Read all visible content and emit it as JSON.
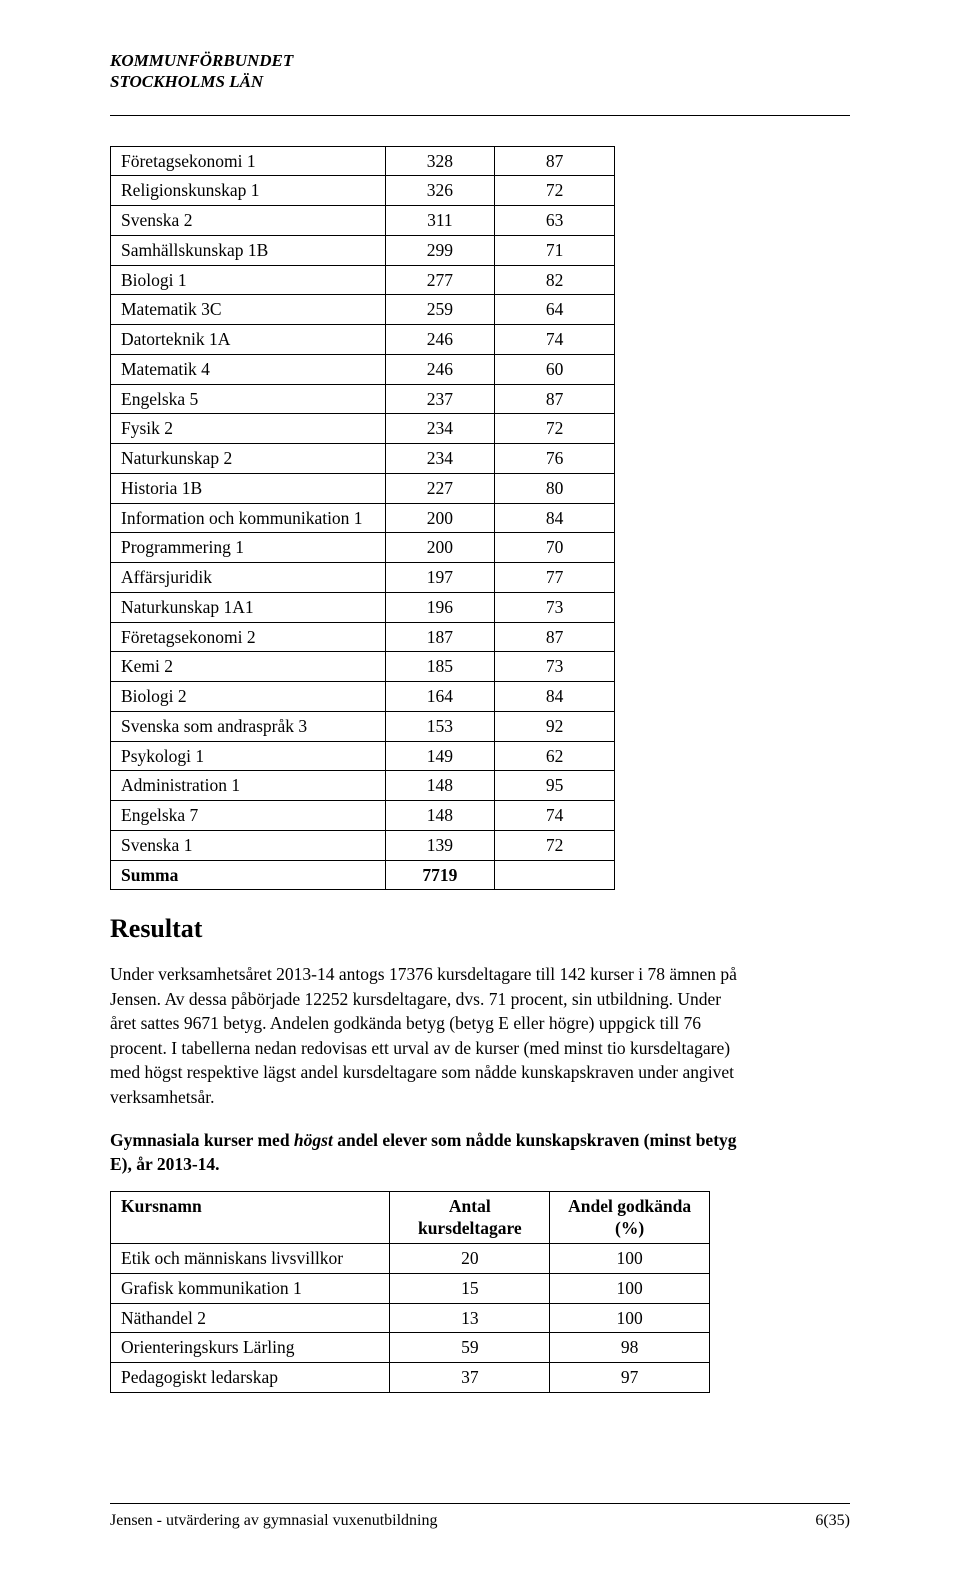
{
  "header": {
    "line1": "KOMMUNFÖRBUNDET",
    "line2": "STOCKHOLMS LÄN"
  },
  "table1": {
    "rows": [
      [
        "Företagsekonomi 1",
        "328",
        "87"
      ],
      [
        "Religionskunskap 1",
        "326",
        "72"
      ],
      [
        "Svenska 2",
        "311",
        "63"
      ],
      [
        "Samhällskunskap 1B",
        "299",
        "71"
      ],
      [
        "Biologi 1",
        "277",
        "82"
      ],
      [
        "Matematik 3C",
        "259",
        "64"
      ],
      [
        "Datorteknik 1A",
        "246",
        "74"
      ],
      [
        "Matematik 4",
        "246",
        "60"
      ],
      [
        "Engelska 5",
        "237",
        "87"
      ],
      [
        "Fysik 2",
        "234",
        "72"
      ],
      [
        "Naturkunskap 2",
        "234",
        "76"
      ],
      [
        "Historia 1B",
        "227",
        "80"
      ],
      [
        "Information och kommunikation 1",
        "200",
        "84"
      ],
      [
        "Programmering 1",
        "200",
        "70"
      ],
      [
        "Affärsjuridik",
        "197",
        "77"
      ],
      [
        "Naturkunskap 1A1",
        "196",
        "73"
      ],
      [
        "Företagsekonomi 2",
        "187",
        "87"
      ],
      [
        "Kemi 2",
        "185",
        "73"
      ],
      [
        "Biologi 2",
        "164",
        "84"
      ],
      [
        "Svenska som andraspråk 3",
        "153",
        "92"
      ],
      [
        "Psykologi 1",
        "149",
        "62"
      ],
      [
        "Administration 1",
        "148",
        "95"
      ],
      [
        "Engelska 7",
        "148",
        "74"
      ],
      [
        "Svenska 1",
        "139",
        "72"
      ]
    ],
    "summa": [
      "Summa",
      "7719",
      ""
    ]
  },
  "section_heading": "Resultat",
  "body_paragraph": "Under verksamhetsåret 2013-14 antogs 17376 kursdeltagare till 142 kurser i 78 ämnen på Jensen. Av dessa påbörjade 12252 kursdeltagare, dvs. 71 procent, sin utbildning. Under året sattes 9671 betyg. Andelen godkända betyg (betyg E eller högre) uppgick till 76 procent. I tabellerna nedan redovisas ett urval av de kurser (med minst tio kursdeltagare) med högst respektive lägst andel kursdeltagare som nådde kunskapskraven under angivet verksamhetsår.",
  "subhead": {
    "pre": "Gymnasiala kurser med ",
    "em": "högst",
    "post": " andel elever som nådde kunskapskraven (minst betyg E), år 2013-14."
  },
  "table2": {
    "header": {
      "c1": "Kursnamn",
      "c2a": "Antal",
      "c2b": "kursdeltagare",
      "c3a": "Andel godkända",
      "c3b": "(%)"
    },
    "rows": [
      [
        "Etik och människans livsvillkor",
        "20",
        "100"
      ],
      [
        "Grafisk kommunikation 1",
        "15",
        "100"
      ],
      [
        "Näthandel 2",
        "13",
        "100"
      ],
      [
        "Orienteringskurs Lärling",
        "59",
        "98"
      ],
      [
        "Pedagogiskt ledarskap",
        "37",
        "97"
      ]
    ]
  },
  "footer": {
    "left": "Jensen - utvärdering av gymnasial vuxenutbildning",
    "right": "6(35)"
  }
}
